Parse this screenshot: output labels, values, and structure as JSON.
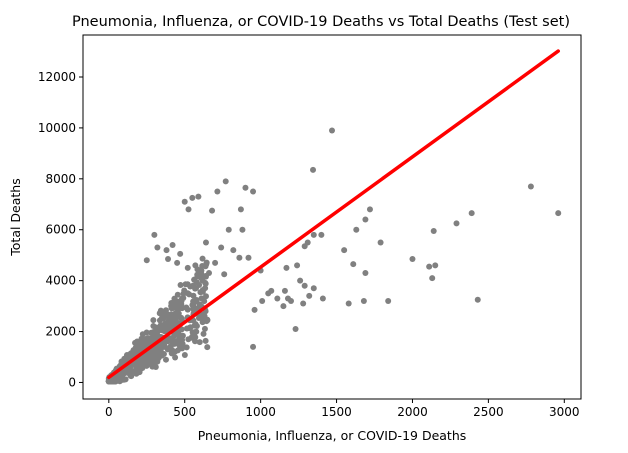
{
  "chart_data": {
    "type": "scatter",
    "title": "Pneumonia, Influenza, or COVID-19 Deaths vs Total Deaths (Test set)",
    "xlabel": "Pneumonia, Influenza, or COVID-19 Deaths",
    "ylabel": "Total Deaths",
    "xlim": [
      -170,
      3110
    ],
    "ylim": [
      -650,
      13650
    ],
    "xticks": [
      0,
      500,
      1000,
      1500,
      2000,
      2500,
      3000
    ],
    "xtick_labels": [
      "0",
      "500",
      "1000",
      "1500",
      "2000",
      "2500",
      "3000"
    ],
    "yticks": [
      0,
      2000,
      4000,
      6000,
      8000,
      10000,
      12000
    ],
    "ytick_labels": [
      "0",
      "2000",
      "4000",
      "6000",
      "8000",
      "10000",
      "12000"
    ],
    "grid": false,
    "colors": {
      "points": "#808080",
      "fit_line": "#ff0000"
    },
    "series": [
      {
        "kind": "scatter",
        "points": [
          [
            1470,
            9900
          ],
          [
            1345,
            8350
          ],
          [
            770,
            7900
          ],
          [
            715,
            7500
          ],
          [
            900,
            7650
          ],
          [
            950,
            7500
          ],
          [
            500,
            7100
          ],
          [
            550,
            7250
          ],
          [
            590,
            7300
          ],
          [
            525,
            6800
          ],
          [
            680,
            6750
          ],
          [
            870,
            6800
          ],
          [
            2780,
            7700
          ],
          [
            2960,
            6650
          ],
          [
            2390,
            6650
          ],
          [
            2290,
            6250
          ],
          [
            1720,
            6800
          ],
          [
            1690,
            6400
          ],
          [
            1630,
            6000
          ],
          [
            1350,
            5800
          ],
          [
            1400,
            5800
          ],
          [
            1310,
            5500
          ],
          [
            1290,
            5350
          ],
          [
            1550,
            5200
          ],
          [
            1690,
            4300
          ],
          [
            2140,
            5950
          ],
          [
            2000,
            4850
          ],
          [
            2110,
            4550
          ],
          [
            2150,
            4600
          ],
          [
            2130,
            4100
          ],
          [
            1790,
            5500
          ],
          [
            1610,
            4650
          ],
          [
            1580,
            3100
          ],
          [
            1680,
            3200
          ],
          [
            1840,
            3200
          ],
          [
            2430,
            3250
          ],
          [
            1240,
            4600
          ],
          [
            1260,
            4000
          ],
          [
            1290,
            3800
          ],
          [
            1350,
            3700
          ],
          [
            1320,
            3400
          ],
          [
            1410,
            3300
          ],
          [
            1230,
            2100
          ],
          [
            1050,
            3500
          ],
          [
            1110,
            3300
          ],
          [
            960,
            2850
          ],
          [
            1010,
            3200
          ],
          [
            1070,
            3600
          ],
          [
            1160,
            3600
          ],
          [
            1180,
            3300
          ],
          [
            950,
            1400
          ],
          [
            1200,
            3200
          ],
          [
            1280,
            3100
          ],
          [
            1150,
            3000
          ],
          [
            920,
            4900
          ],
          [
            860,
            4900
          ],
          [
            640,
            5500
          ],
          [
            740,
            5300
          ],
          [
            790,
            6000
          ],
          [
            880,
            6000
          ],
          [
            820,
            5200
          ],
          [
            700,
            4700
          ],
          [
            610,
            4400
          ],
          [
            450,
            4700
          ],
          [
            390,
            4850
          ],
          [
            300,
            5800
          ],
          [
            250,
            4800
          ],
          [
            320,
            5300
          ],
          [
            380,
            5200
          ],
          [
            420,
            5400
          ],
          [
            470,
            5050
          ],
          [
            520,
            4500
          ],
          [
            570,
            4600
          ],
          [
            660,
            4300
          ],
          [
            760,
            4250
          ],
          [
            1000,
            4400
          ],
          [
            1170,
            4500
          ]
        ]
      },
      {
        "kind": "line",
        "name": "",
        "points": [
          [
            0,
            200
          ],
          [
            2960,
            13020
          ]
        ]
      }
    ]
  }
}
